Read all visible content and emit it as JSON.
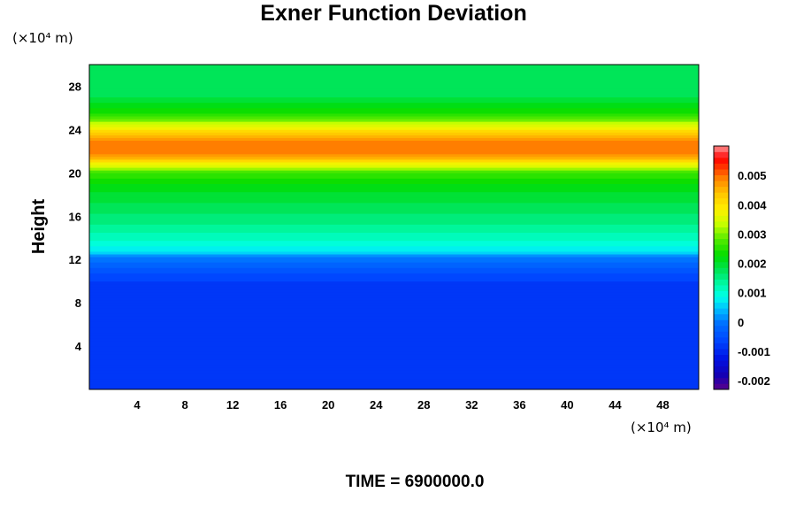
{
  "chart_data": {
    "type": "heatmap",
    "title": "Exner Function Deviation",
    "ylabel": "Height",
    "x_unit": "(×10⁴ m)",
    "y_unit": "(×10⁴ m)",
    "xlim": [
      0,
      51
    ],
    "ylim": [
      0,
      30
    ],
    "x_ticks": [
      "4",
      "8",
      "12",
      "16",
      "20",
      "24",
      "28",
      "32",
      "36",
      "40",
      "44",
      "48"
    ],
    "y_ticks": [
      "4",
      "8",
      "12",
      "16",
      "20",
      "24",
      "28"
    ],
    "colorbar": {
      "range": [
        -0.0023,
        0.006
      ],
      "tick_labels": [
        "0.005",
        "0.004",
        "0.003",
        "0.002",
        "0.001",
        "0",
        "-0.001",
        "-0.002"
      ]
    },
    "vertical_profile": {
      "height": [
        0,
        9.5,
        10.5,
        11.5,
        12.2,
        13,
        15,
        17,
        19,
        20,
        21,
        21.8,
        22.6,
        23.5,
        24.5,
        25.5,
        27,
        30
      ],
      "value": [
        -0.0009,
        -0.0009,
        -0.0006,
        -0.0002,
        0.0001,
        0.0008,
        0.0014,
        0.0018,
        0.0022,
        0.0026,
        0.004,
        0.005,
        0.005,
        0.0045,
        0.0034,
        0.0024,
        0.0018,
        0.0017
      ]
    },
    "footer": "TIME = 6900000.0"
  }
}
